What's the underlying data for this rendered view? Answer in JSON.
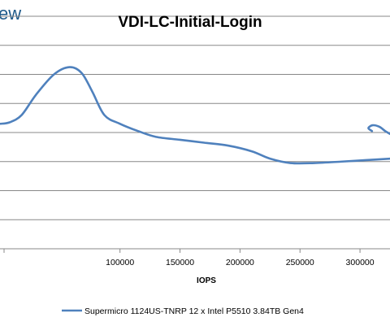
{
  "brand": {
    "text": "ew",
    "color": "#1e5a8a"
  },
  "chart_data": {
    "type": "line",
    "title": "VDI-LC-Initial-Login",
    "xlabel": "IOPS",
    "ylabel": "",
    "xlim": [
      0,
      325000
    ],
    "ylim": [
      0,
      8
    ],
    "x_ticks": [
      100000,
      150000,
      200000,
      250000,
      300000
    ],
    "x_tick_labels": [
      "100000",
      "150000",
      "200000",
      "250000",
      "300000"
    ],
    "grid": true,
    "legend": "bottom",
    "series": [
      {
        "name": "Supermicro 1124US-TNRP 12 x Intel P5510 3.84TB Gen4",
        "color": "#4f81bd",
        "points": [
          [
            0,
            4.3
          ],
          [
            8000,
            4.35
          ],
          [
            18000,
            4.6
          ],
          [
            30000,
            5.3
          ],
          [
            45000,
            6.0
          ],
          [
            58000,
            6.25
          ],
          [
            68000,
            6.05
          ],
          [
            77000,
            5.4
          ],
          [
            87000,
            4.6
          ],
          [
            100000,
            4.3
          ],
          [
            115000,
            4.05
          ],
          [
            130000,
            3.85
          ],
          [
            150000,
            3.75
          ],
          [
            170000,
            3.65
          ],
          [
            190000,
            3.55
          ],
          [
            210000,
            3.35
          ],
          [
            225000,
            3.1
          ],
          [
            242000,
            2.95
          ],
          [
            262000,
            2.95
          ],
          [
            285000,
            3.0
          ],
          [
            305000,
            3.05
          ],
          [
            325000,
            3.1
          ]
        ]
      },
      {
        "name": "Supermicro 1124US-TNRP 12 x Intel P5510 3.84TB Gen4",
        "color": "#4f81bd",
        "points": [
          [
            310000,
            4.05
          ],
          [
            307000,
            4.15
          ],
          [
            310500,
            4.25
          ],
          [
            316000,
            4.2
          ],
          [
            321000,
            4.05
          ],
          [
            325000,
            3.95
          ]
        ]
      }
    ]
  }
}
